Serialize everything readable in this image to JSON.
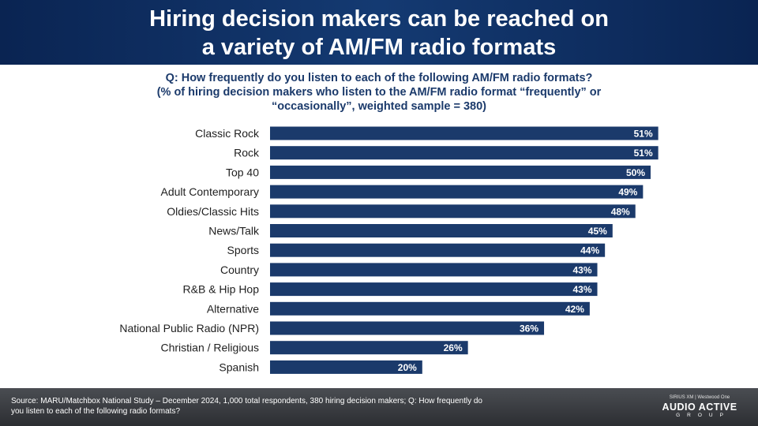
{
  "header": {
    "title_line1": "Hiring decision makers can be reached on",
    "title_line2": "a variety of AM/FM radio formats"
  },
  "question": {
    "line1": "Q: How frequently do you listen to each of the following AM/FM radio formats?",
    "line2": "(% of hiring decision makers who listen to the AM/FM radio format “frequently” or",
    "line3": "“occasionally”, weighted sample = 380)"
  },
  "chart_data": {
    "type": "bar",
    "orientation": "horizontal",
    "categories": [
      "Classic Rock",
      "Rock",
      "Top 40",
      "Adult Contemporary",
      "Oldies/Classic Hits",
      "News/Talk",
      "Sports",
      "Country",
      "R&B & Hip Hop",
      "Alternative",
      "National Public Radio (NPR)",
      "Christian / Religious",
      "Spanish"
    ],
    "values": [
      51,
      51,
      50,
      49,
      48,
      45,
      44,
      43,
      43,
      42,
      36,
      26,
      20
    ],
    "value_labels": [
      "51%",
      "51%",
      "50%",
      "49%",
      "48%",
      "45%",
      "44%",
      "43%",
      "43%",
      "42%",
      "36%",
      "26%",
      "20%"
    ],
    "xlim": [
      0,
      60
    ],
    "bar_color": "#1b3a6b",
    "grid": false,
    "legend": "none"
  },
  "footer": {
    "source_line1": "Source: MARU/Matchbox National Study – December 2024, 1,000 total respondents, 380 hiring decision makers; Q: How frequently do",
    "source_line2": "you listen to each of the following radio formats?",
    "logo_top_left": "SIRIUS XM",
    "logo_top_right": "Westwood One",
    "logo_main": "AUDIO ACTIVE",
    "logo_sub": "GROUP"
  }
}
